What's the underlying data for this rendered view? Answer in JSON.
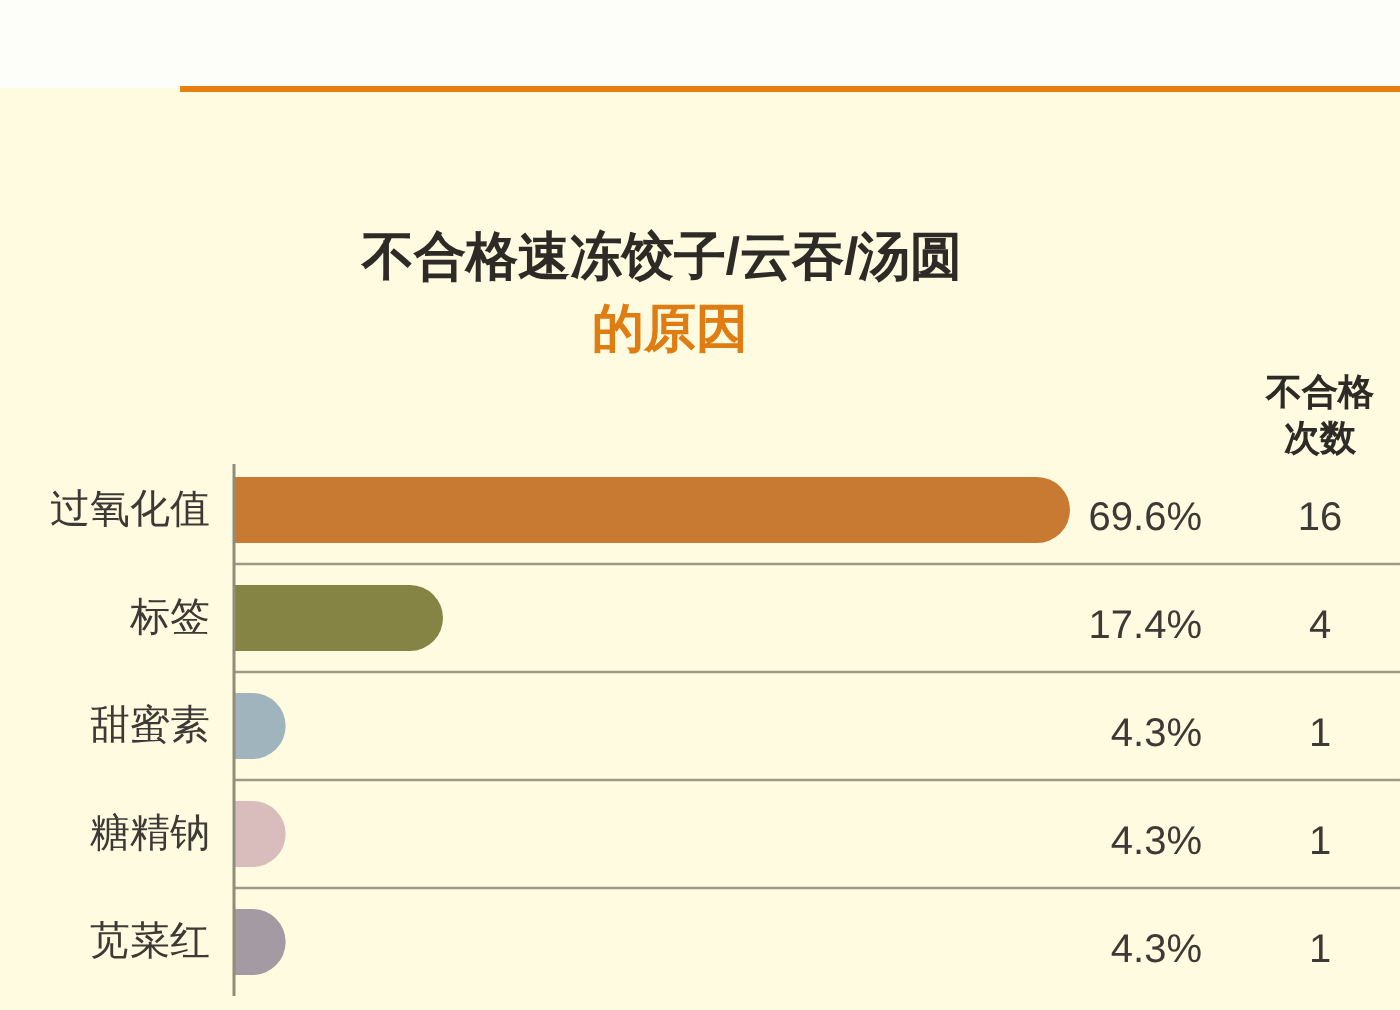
{
  "chart_data": {
    "type": "bar",
    "orientation": "horizontal",
    "title": "不合格速冻饺子/云吞/汤圆",
    "subtitle": "的原因",
    "categories": [
      "过氧化值",
      "标签",
      "甜蜜素",
      "糖精钠",
      "苋菜红"
    ],
    "values": [
      69.6,
      17.4,
      4.3,
      4.3,
      4.3
    ],
    "colors": [
      "#c97a32",
      "#858444",
      "#9fb4bd",
      "#d9bcbc",
      "#a39aa3"
    ],
    "value_labels": [
      "69.6%",
      "17.4%",
      "4.3%",
      "4.3%",
      "4.3%"
    ],
    "annotations": [
      "不合格次数",
      "16",
      "4",
      "1",
      "1",
      "1"
    ],
    "grid": "y",
    "tick_labels": "y"
  }
}
